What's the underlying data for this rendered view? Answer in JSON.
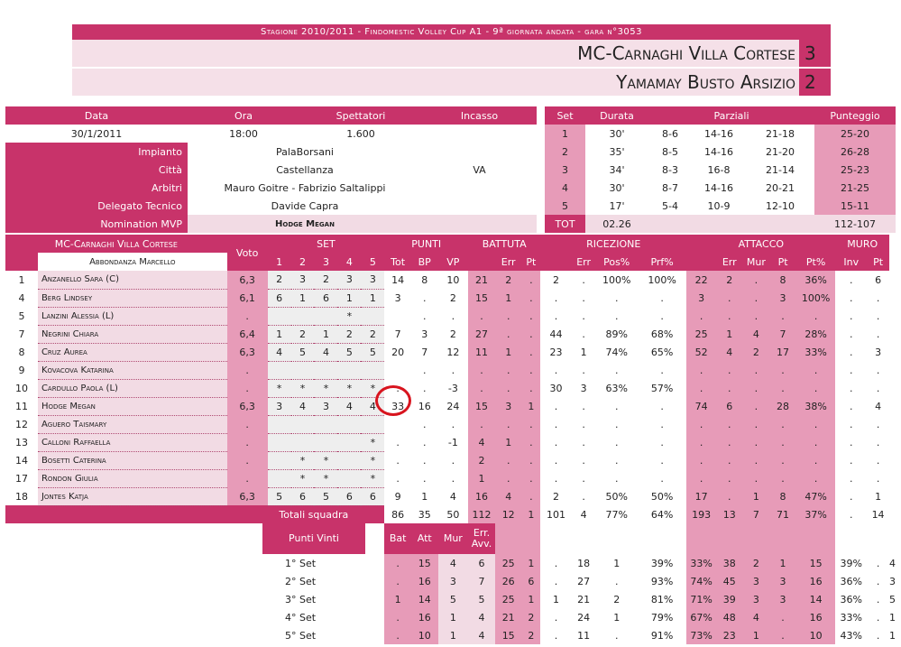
{
  "header": {
    "season": "Stagione  2010/2011 - Findomestic Volley Cup A1 - 9ª giornata andata - gara n°3053",
    "home": {
      "name": "MC-Carnaghi Villa Cortese",
      "score": "3"
    },
    "away": {
      "name": "Yamamay Busto Arsizio",
      "score": "2"
    }
  },
  "info": {
    "h_date": "Data",
    "h_time": "Ora",
    "h_spect": "Spettatori",
    "h_cash": "Incasso",
    "date": "30/1/2011",
    "time": "18:00",
    "spect": "1.600",
    "cash": "",
    "rows": [
      {
        "label": "Impianto",
        "v1": "PalaBorsani",
        "v2": ""
      },
      {
        "label": "Città",
        "v1": "Castellanza",
        "v2": "VA"
      },
      {
        "label": "Arbitri",
        "v1": "Mauro Goitre - Fabrizio Saltalippi",
        "v2": ""
      },
      {
        "label": "Delegato Tecnico",
        "v1": "Davide Capra",
        "v2": ""
      },
      {
        "label": "Nomination MVP",
        "v1": "Hodge Megan",
        "v2": ""
      }
    ]
  },
  "sets": {
    "h_set": "Set",
    "h_dur": "Durata",
    "h_par": "Parziali",
    "h_pun": "Punteggio",
    "rows": [
      [
        "1",
        "30'",
        "8-6",
        "14-16",
        "21-18",
        "25-20"
      ],
      [
        "2",
        "35'",
        "8-5",
        "14-16",
        "21-20",
        "26-28"
      ],
      [
        "3",
        "34'",
        "8-3",
        "16-8",
        "21-14",
        "25-23"
      ],
      [
        "4",
        "30'",
        "8-7",
        "14-16",
        "20-21",
        "21-25"
      ],
      [
        "5",
        "17'",
        "5-4",
        "10-9",
        "12-10",
        "15-11"
      ]
    ],
    "tot_label": "TOT",
    "tot_dur": "02.26",
    "tot_score": "112-107"
  },
  "stats": {
    "team": "MC-Carnaghi Villa Cortese",
    "coach": "Abbondanza Marcello",
    "h_voto": "Voto",
    "h_set": "SET",
    "h_punti": "PUNTI",
    "h_batt": "BATTUTA",
    "h_ric": "RICEZIONE",
    "h_att": "ATTACCO",
    "h_muro": "MURO",
    "sub": [
      "1",
      "2",
      "3",
      "4",
      "5",
      "Tot",
      "BP",
      "VP",
      "",
      "Err",
      "Pt",
      "",
      "Err",
      "Pos%",
      "Prf%",
      "",
      "Err",
      "Mur",
      "Pt",
      "Pt%",
      "Inv",
      "Pt"
    ],
    "players": [
      [
        "1",
        "Anzanello Sara (C)",
        "6,3",
        "2",
        "3",
        "2",
        "3",
        "3",
        "14",
        "8",
        "10",
        "21",
        "2",
        ".",
        "2",
        ".",
        "100%",
        "100%",
        "22",
        "2",
        ".",
        "8",
        "36%",
        ".",
        "6"
      ],
      [
        "4",
        "Berg Lindsey",
        "6,1",
        "6",
        "1",
        "6",
        "1",
        "1",
        "3",
        ".",
        "2",
        "15",
        "1",
        ".",
        ".",
        ".",
        ".",
        ".",
        "3",
        ".",
        ".",
        "3",
        "100%",
        ".",
        "."
      ],
      [
        "5",
        "Lanzini Alessia (L)",
        ".",
        "",
        "",
        "",
        "*",
        "",
        "",
        ".",
        ".",
        ".",
        ".",
        ".",
        ".",
        ".",
        ".",
        ".",
        ".",
        ".",
        ".",
        ".",
        ".",
        ".",
        "."
      ],
      [
        "7",
        "Negrini Chiara",
        "6,4",
        "1",
        "2",
        "1",
        "2",
        "2",
        "7",
        "3",
        "2",
        "27",
        ".",
        ".",
        "44",
        ".",
        "89%",
        "68%",
        "25",
        "1",
        "4",
        "7",
        "28%",
        ".",
        "."
      ],
      [
        "8",
        "Cruz Aurea",
        "6,3",
        "4",
        "5",
        "4",
        "5",
        "5",
        "20",
        "7",
        "12",
        "11",
        "1",
        ".",
        "23",
        "1",
        "74%",
        "65%",
        "52",
        "4",
        "2",
        "17",
        "33%",
        ".",
        "3"
      ],
      [
        "9",
        "Kovacova Katarina",
        ".",
        "",
        "",
        "",
        "",
        "",
        "",
        ".",
        ".",
        ".",
        ".",
        ".",
        ".",
        ".",
        ".",
        ".",
        ".",
        ".",
        ".",
        ".",
        ".",
        ".",
        "."
      ],
      [
        "10",
        "Cardullo Paola (L)",
        ".",
        "*",
        "*",
        "*",
        "*",
        "*",
        ".",
        ".",
        "-3",
        ".",
        ".",
        ".",
        "30",
        "3",
        "63%",
        "57%",
        ".",
        ".",
        ".",
        ".",
        ".",
        ".",
        "."
      ],
      [
        "11",
        "Hodge Megan",
        "6,3",
        "3",
        "4",
        "3",
        "4",
        "4",
        "33",
        "16",
        "24",
        "15",
        "3",
        "1",
        ".",
        ".",
        ".",
        ".",
        "74",
        "6",
        ".",
        "28",
        "38%",
        ".",
        "4"
      ],
      [
        "12",
        "Aguero Taismary",
        ".",
        "",
        "",
        "",
        "",
        "",
        "",
        ".",
        ".",
        ".",
        ".",
        ".",
        ".",
        ".",
        ".",
        ".",
        ".",
        ".",
        ".",
        ".",
        ".",
        ".",
        "."
      ],
      [
        "13",
        "Calloni Raffaella",
        ".",
        "",
        "",
        "",
        "",
        "*",
        ".",
        ".",
        "-1",
        "4",
        "1",
        ".",
        ".",
        ".",
        ".",
        ".",
        ".",
        ".",
        ".",
        ".",
        ".",
        ".",
        "."
      ],
      [
        "14",
        "Bosetti Caterina",
        ".",
        "",
        "*",
        "*",
        "",
        "*",
        ".",
        ".",
        ".",
        "2",
        ".",
        ".",
        ".",
        ".",
        ".",
        ".",
        ".",
        ".",
        ".",
        ".",
        ".",
        ".",
        "."
      ],
      [
        "17",
        "Rondon Giulia",
        ".",
        "",
        "*",
        "*",
        "",
        "*",
        ".",
        ".",
        ".",
        "1",
        ".",
        ".",
        ".",
        ".",
        ".",
        ".",
        ".",
        ".",
        ".",
        ".",
        ".",
        ".",
        "."
      ],
      [
        "18",
        "Jontes Katja",
        "6,3",
        "5",
        "6",
        "5",
        "6",
        "6",
        "9",
        "1",
        "4",
        "16",
        "4",
        ".",
        "2",
        ".",
        "50%",
        "50%",
        "17",
        ".",
        "1",
        "8",
        "47%",
        ".",
        "1"
      ]
    ],
    "totals_label": "Totali squadra",
    "totals": [
      "86",
      "35",
      "50",
      "112",
      "12",
      "1",
      "101",
      "4",
      "77%",
      "64%",
      "193",
      "13",
      "7",
      "71",
      "37%",
      ".",
      "14"
    ],
    "pv": {
      "title": "Punti Vinti",
      "h_bat": "Bat",
      "h_att": "Att",
      "h_mur": "Mur",
      "h_err": "Err. Avv.",
      "rows": [
        [
          "1° Set",
          ".",
          "15",
          "4",
          "6",
          "25",
          "1",
          ".",
          "18",
          "1",
          "39%",
          "33%",
          "38",
          "2",
          "1",
          "15",
          "39%",
          ".",
          "4"
        ],
        [
          "2° Set",
          ".",
          "16",
          "3",
          "7",
          "26",
          "6",
          ".",
          "27",
          ".",
          "93%",
          "74%",
          "45",
          "3",
          "3",
          "16",
          "36%",
          ".",
          "3"
        ],
        [
          "3° Set",
          "1",
          "14",
          "5",
          "5",
          "25",
          "1",
          "1",
          "21",
          "2",
          "81%",
          "71%",
          "39",
          "3",
          "3",
          "14",
          "36%",
          ".",
          "5"
        ],
        [
          "4° Set",
          ".",
          "16",
          "1",
          "4",
          "21",
          "2",
          ".",
          "24",
          "1",
          "79%",
          "67%",
          "48",
          "4",
          ".",
          "16",
          "33%",
          ".",
          "1"
        ],
        [
          "5° Set",
          ".",
          "10",
          "1",
          "4",
          "15",
          "2",
          ".",
          "11",
          ".",
          "91%",
          "73%",
          "23",
          "1",
          ".",
          "10",
          "43%",
          ".",
          "1"
        ]
      ]
    }
  }
}
